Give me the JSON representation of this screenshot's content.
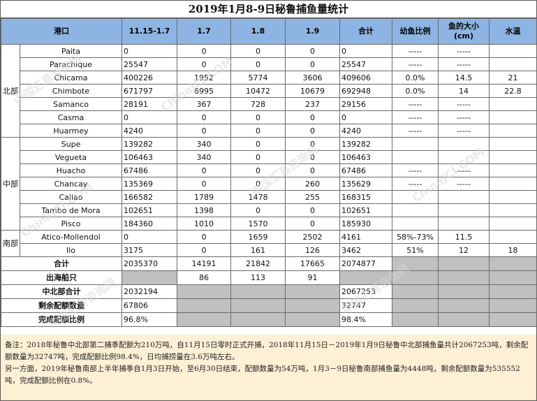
{
  "title": "2019年1月8-9日秘鲁捕鱼量统计",
  "headers": [
    "港口",
    "11.15-1.7",
    "1.7",
    "1.8",
    "1.9",
    "合计",
    "幼鱼比例",
    "鱼的大小\n(cm)",
    "水温"
  ],
  "regions": [
    {
      "name": "北部",
      "rows": [
        {
          "port": "Paita",
          "c1": "0",
          "c2": "0",
          "c3": "0",
          "c4": "0",
          "total": "0",
          "juvenile": "-----",
          "size": "-----",
          "temp": ""
        },
        {
          "port": "Parachique",
          "c1": "25547",
          "c2": "0",
          "c3": "0",
          "c4": "0",
          "total": "25547",
          "juvenile": "-----",
          "size": "-----",
          "temp": ""
        },
        {
          "port": "Chicama",
          "c1": "400226",
          "c2": "1952",
          "c3": "5774",
          "c4": "3606",
          "total": "409606",
          "juvenile": "0.0%",
          "size": "14.5",
          "temp": "21"
        },
        {
          "port": "Chimbote",
          "c1": "671797",
          "c2": "6995",
          "c3": "10472",
          "c4": "10679",
          "total": "692948",
          "juvenile": "0.0%",
          "size": "14",
          "temp": "22.8"
        },
        {
          "port": "Samanco",
          "c1": "28191",
          "c2": "367",
          "c3": "728",
          "c4": "237",
          "total": "29156",
          "juvenile": "-----",
          "size": "-----",
          "temp": ""
        },
        {
          "port": "Casma",
          "c1": "0",
          "c2": "0",
          "c3": "0",
          "c4": "0",
          "total": "0",
          "juvenile": "-----",
          "size": "-----",
          "temp": ""
        },
        {
          "port": "Huarmey",
          "c1": "4240",
          "c2": "0",
          "c3": "0",
          "c4": "0",
          "total": "4240",
          "juvenile": "-----",
          "size": "-----",
          "temp": ""
        }
      ]
    },
    {
      "name": "中部",
      "rows": [
        {
          "port": "Supe",
          "c1": "139282",
          "c2": "340",
          "c3": "0",
          "c4": "0",
          "total": "139282",
          "juvenile": "",
          "size": "",
          "temp": ""
        },
        {
          "port": "Vegueta",
          "c1": "106463",
          "c2": "340",
          "c3": "0",
          "c4": "0",
          "total": "106463",
          "juvenile": "",
          "size": "",
          "temp": ""
        },
        {
          "port": "Huacho",
          "c1": "67486",
          "c2": "0",
          "c3": "0",
          "c4": "0",
          "total": "67486",
          "juvenile": "-----",
          "size": "-----",
          "temp": ""
        },
        {
          "port": "Chancay",
          "c1": "135369",
          "c2": "0",
          "c3": "0",
          "c4": "260",
          "total": "135629",
          "juvenile": "-----",
          "size": "-----",
          "temp": ""
        },
        {
          "port": "Callao",
          "c1": "166582",
          "c2": "1789",
          "c3": "1478",
          "c4": "255",
          "total": "168315",
          "juvenile": "",
          "size": "",
          "temp": ""
        },
        {
          "port": "Tambo de Mora",
          "c1": "102651",
          "c2": "1398",
          "c3": "0",
          "c4": "0",
          "total": "102651",
          "juvenile": "",
          "size": "",
          "temp": ""
        },
        {
          "port": "Pisco",
          "c1": "184360",
          "c2": "1010",
          "c3": "1570",
          "c4": "0",
          "total": "185930",
          "juvenile": "",
          "size": "",
          "temp": ""
        }
      ]
    },
    {
      "name": "南部",
      "rows": [
        {
          "port": "Atico-Mollendol",
          "c1": "0",
          "c2": "0",
          "c3": "1659",
          "c4": "2502",
          "total": "4161",
          "juvenile": "58%-73%",
          "size": "11.5",
          "temp": ""
        },
        {
          "port": "Ilo",
          "c1": "3175",
          "c2": "0",
          "c3": "161",
          "c4": "126",
          "total": "3462",
          "juvenile": "51%",
          "size": "12",
          "temp": "18"
        }
      ]
    }
  ],
  "summary": {
    "total": {
      "label": "合计",
      "c1": "2035370",
      "c2": "14191",
      "c3": "21842",
      "c4": "17665",
      "total": "2074877"
    },
    "boats": {
      "label": "出海船只",
      "c2": "86",
      "c3": "113",
      "c4": "91"
    },
    "central_north": {
      "label": "中北部合计",
      "c1": "2032194",
      "total": "2067253"
    },
    "remaining": {
      "label": "剩余配额数量",
      "c1": "67806",
      "total": "32747"
    },
    "completion": {
      "label": "完成配额比例",
      "c1": "96.8%",
      "total": "98.4%"
    }
  },
  "notes": [
    "备注：2018年秘鲁中北部第二捕季配额为210万吨，自11月15日零时正式开捕，2018年11月15日－2019年1月9日秘鲁中北部捕鱼量共计2067253吨，剩余配额数量为32747吨，完成配额比例98.4%，日均捕捞量在3.6万吨左右。",
    "另一方面，2019年秘鲁南部上半年捕季自1月3日开始，至6月30日结束，配额数量为54万吨，1月3－9日秘鲁南部捕鱼量为4448吨，剩余配额数量为535552吨，完成配额比例在0.8%。"
  ],
  "watermarks": [
    "中国汇易咨询网",
    "ChinaJCI.COM"
  ]
}
